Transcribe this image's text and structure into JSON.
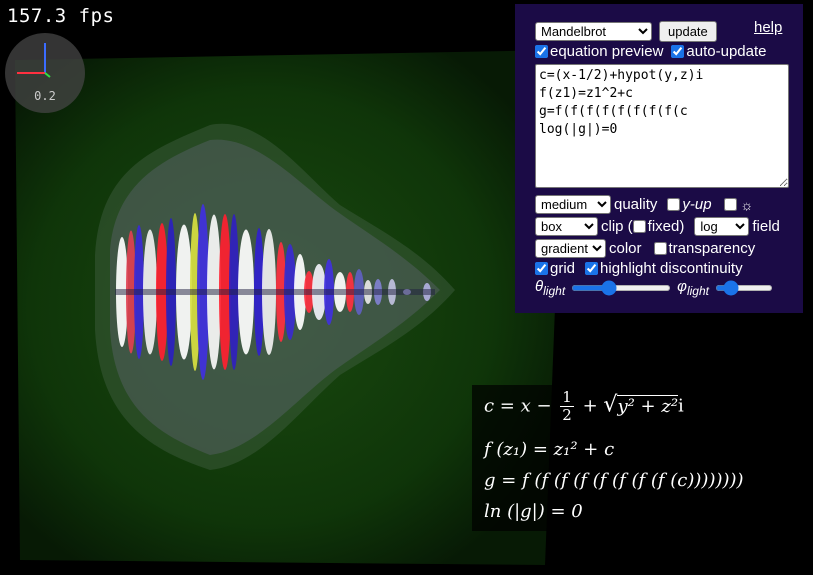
{
  "fps_counter": "157.3 fps",
  "axis_widget": {
    "scale": "0.2"
  },
  "panel": {
    "fractal_select": {
      "selected": "Mandelbrot",
      "options": [
        "Mandelbrot"
      ]
    },
    "update_label": "update",
    "help_label": "help",
    "equation_preview_label": "equation preview",
    "auto_update_label": "auto-update",
    "equation_text": "c=(x-1/2)+hypot(y,z)i\nf(z1)=z1^2+c\ng=f(f(f(f(f(f(f(f(c\nlog(|g|)=0",
    "quality_select": {
      "selected": "medium",
      "options": [
        "medium"
      ]
    },
    "quality_label": "quality",
    "y_up_label": "y-up",
    "light_icon": "sun-icon",
    "light_glyph": "☼",
    "clip_select": {
      "selected": "box",
      "options": [
        "box"
      ]
    },
    "clip_label": "clip (",
    "fixed_label": "fixed)",
    "field_select": {
      "selected": "log",
      "options": [
        "log"
      ]
    },
    "field_label": "field",
    "color_select": {
      "selected": "gradient",
      "options": [
        "gradient"
      ]
    },
    "color_label": "color",
    "transparency_label": "transparency",
    "grid_label": "grid",
    "highlight_label": "highlight discontinuity",
    "theta_label": "θ",
    "theta_sub": "light",
    "phi_label": "φ",
    "phi_sub": "light",
    "theta_value": 35,
    "phi_value": 20,
    "checks": {
      "equation_preview": true,
      "auto_update": true,
      "y_up": false,
      "light": false,
      "fixed": false,
      "transparency": false,
      "grid": true,
      "highlight": true
    }
  },
  "preview": {
    "line1": {
      "lhs": "c = x −",
      "num": "1",
      "den": "2",
      "plus": "+",
      "root": "y² + z²",
      "tail": "i"
    },
    "line2": "f (z₁) = z₁² + c",
    "line3": "g = f (f (f (f (f (f (f (f (c))))))))",
    "line4": "ln (|g|) = 0"
  },
  "colors": {
    "panel_bg": "#1b0b46",
    "accent": "#1a73e8",
    "scene_bg": "#0b2a08"
  }
}
